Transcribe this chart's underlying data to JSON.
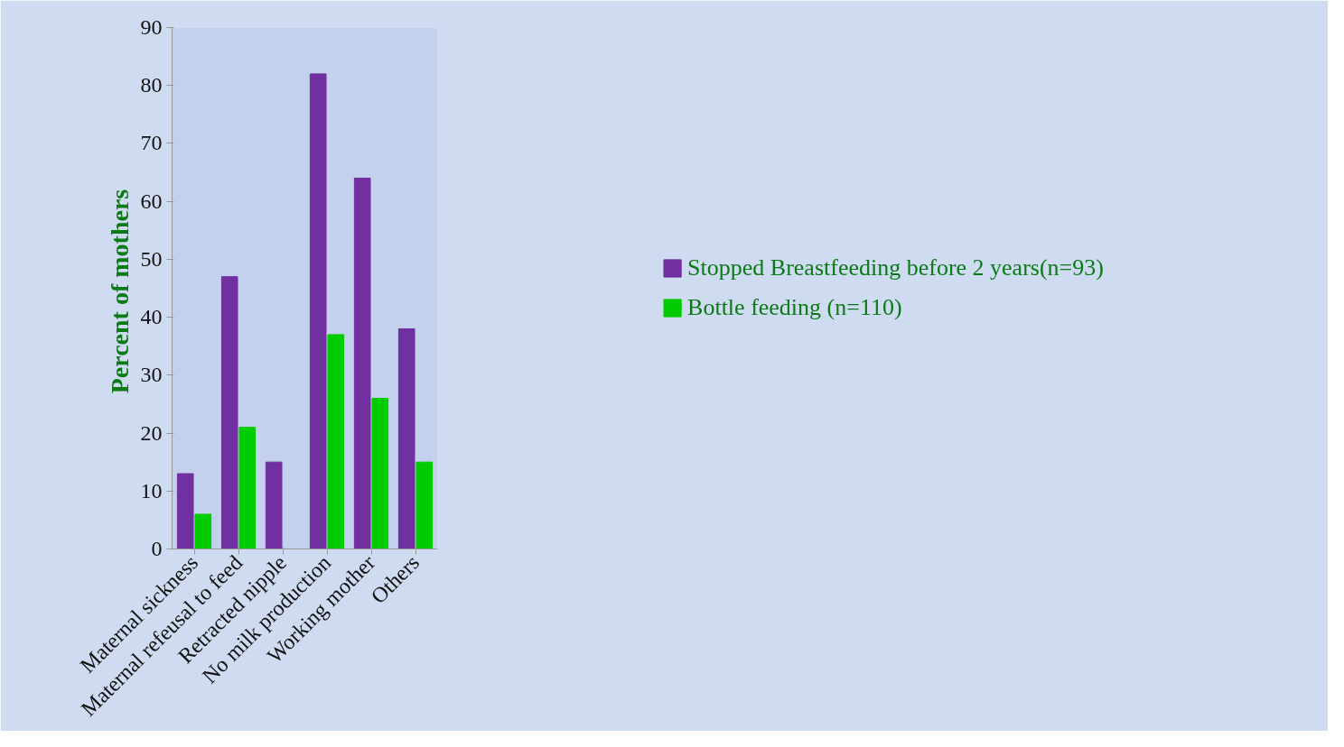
{
  "chart_data": {
    "type": "bar",
    "ylabel": "Percent of  mothers",
    "categories": [
      "Maternal sickness",
      "Maternal refeusal to feed",
      "Retracted nipple",
      "No milk production",
      "Working mother",
      "Others"
    ],
    "series": [
      {
        "name": "Stopped Breastfeeding before 2 years(n=93)",
        "color": "#7030a0",
        "values": [
          13,
          47,
          15,
          82,
          64,
          38
        ]
      },
      {
        "name": "Bottle feeding (n=110)",
        "color": "#00cc00",
        "values": [
          6,
          21,
          0,
          37,
          26,
          15
        ]
      }
    ],
    "ylim": [
      0,
      90
    ],
    "yticks": [
      0,
      10,
      20,
      30,
      40,
      50,
      60,
      70,
      80,
      90
    ],
    "grid": false,
    "legend": "right"
  }
}
